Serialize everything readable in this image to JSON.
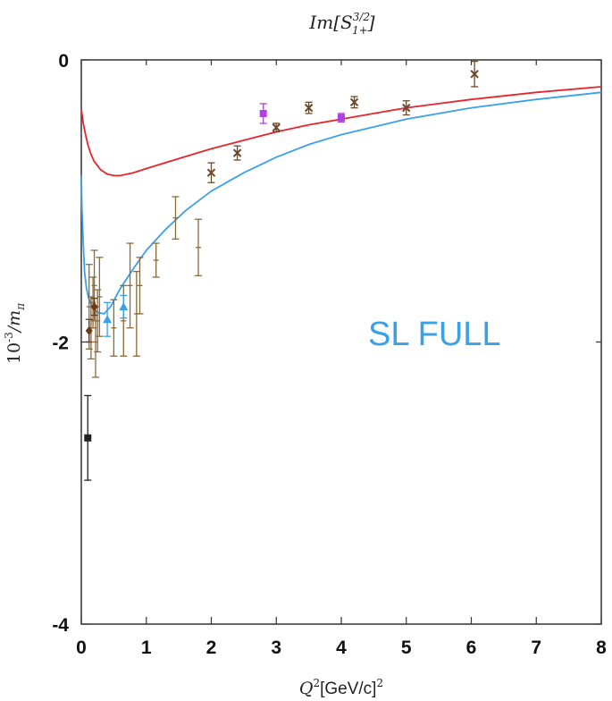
{
  "chart_data": {
    "type": "scatter",
    "title": "Im[S",
    "title_sup": "3/2",
    "title_sub": "1+",
    "title_end": "]",
    "xlabel": "Q",
    "xlabel_sup": "2",
    "xlabel_unit": "[GeV/c]",
    "xlabel_unit_sup": "2",
    "ylabel": "10",
    "ylabel_sup": "-3",
    "ylabel_end": "/m",
    "ylabel_sub": "π",
    "xlim": [
      0,
      8
    ],
    "ylim": [
      -4,
      0
    ],
    "xticks": [
      "0",
      "1",
      "2",
      "3",
      "4",
      "5",
      "6",
      "7",
      "8"
    ],
    "yticks": [
      "0",
      "-2",
      "-4"
    ],
    "grid": false,
    "annotation": "SL FULL",
    "curves": [
      {
        "color": "#e8242c",
        "points": [
          [
            0.0,
            -0.35
          ],
          [
            0.03,
            -0.45
          ],
          [
            0.06,
            -0.52
          ],
          [
            0.1,
            -0.6
          ],
          [
            0.15,
            -0.67
          ],
          [
            0.2,
            -0.72
          ],
          [
            0.3,
            -0.78
          ],
          [
            0.4,
            -0.81
          ],
          [
            0.5,
            -0.82
          ],
          [
            0.6,
            -0.82
          ],
          [
            0.8,
            -0.8
          ],
          [
            1.0,
            -0.77
          ],
          [
            1.5,
            -0.7
          ],
          [
            2.0,
            -0.63
          ],
          [
            2.5,
            -0.57
          ],
          [
            3.0,
            -0.51
          ],
          [
            3.5,
            -0.46
          ],
          [
            4.0,
            -0.42
          ],
          [
            4.5,
            -0.38
          ],
          [
            5.0,
            -0.34
          ],
          [
            5.5,
            -0.31
          ],
          [
            6.0,
            -0.28
          ],
          [
            7.0,
            -0.23
          ],
          [
            8.0,
            -0.19
          ]
        ]
      },
      {
        "color": "#3aa0e8",
        "points": [
          [
            0.0,
            -0.82
          ],
          [
            0.01,
            -1.05
          ],
          [
            0.03,
            -1.3
          ],
          [
            0.05,
            -1.5
          ],
          [
            0.08,
            -1.62
          ],
          [
            0.12,
            -1.7
          ],
          [
            0.18,
            -1.76
          ],
          [
            0.25,
            -1.79
          ],
          [
            0.35,
            -1.8
          ],
          [
            0.45,
            -1.75
          ],
          [
            0.6,
            -1.62
          ],
          [
            0.8,
            -1.48
          ],
          [
            1.0,
            -1.35
          ],
          [
            1.3,
            -1.2
          ],
          [
            1.6,
            -1.07
          ],
          [
            2.0,
            -0.93
          ],
          [
            2.5,
            -0.8
          ],
          [
            3.0,
            -0.69
          ],
          [
            3.5,
            -0.6
          ],
          [
            4.0,
            -0.53
          ],
          [
            5.0,
            -0.42
          ],
          [
            6.0,
            -0.34
          ],
          [
            7.0,
            -0.28
          ],
          [
            8.0,
            -0.23
          ]
        ]
      }
    ],
    "series": [
      {
        "marker": "bar",
        "color": "#8a6a3a",
        "points": [
          {
            "x": 0.12,
            "y": -1.75,
            "err": 0.3
          },
          {
            "x": 0.15,
            "y": -1.9,
            "err": 0.22
          },
          {
            "x": 0.18,
            "y": -1.72,
            "err": 0.18
          },
          {
            "x": 0.2,
            "y": -1.6,
            "err": 0.25
          },
          {
            "x": 0.22,
            "y": -2.0,
            "err": 0.25
          },
          {
            "x": 0.25,
            "y": -1.85,
            "err": 0.22
          },
          {
            "x": 0.28,
            "y": -1.68,
            "err": 0.28
          },
          {
            "x": 0.5,
            "y": -1.9,
            "err": 0.2
          },
          {
            "x": 0.65,
            "y": -1.85,
            "err": 0.25
          },
          {
            "x": 0.75,
            "y": -1.6,
            "err": 0.3
          },
          {
            "x": 0.85,
            "y": -1.8,
            "err": 0.3
          },
          {
            "x": 0.9,
            "y": -1.6,
            "err": 0.2
          },
          {
            "x": 1.15,
            "y": -1.42,
            "err": 0.12
          },
          {
            "x": 1.45,
            "y": -1.12,
            "err": 0.15
          },
          {
            "x": 1.8,
            "y": -1.33,
            "err": 0.2
          }
        ]
      },
      {
        "marker": "cross",
        "color": "#6a4a2a",
        "points": [
          {
            "x": 2.0,
            "y": -0.8,
            "err": 0.07
          },
          {
            "x": 2.4,
            "y": -0.66,
            "err": 0.05
          },
          {
            "x": 3.0,
            "y": -0.48,
            "err": 0.03
          },
          {
            "x": 3.5,
            "y": -0.34,
            "err": 0.04
          },
          {
            "x": 4.2,
            "y": -0.3,
            "err": 0.04
          },
          {
            "x": 5.0,
            "y": -0.34,
            "err": 0.05
          },
          {
            "x": 6.05,
            "y": -0.1,
            "err": 0.09
          }
        ]
      },
      {
        "marker": "square",
        "color": "#b040e0",
        "points": [
          {
            "x": 2.8,
            "y": -0.38,
            "err": 0.07
          },
          {
            "x": 4.0,
            "y": -0.41,
            "err": 0.03
          }
        ]
      },
      {
        "marker": "triangle",
        "color": "#3aa0e8",
        "points": [
          {
            "x": 0.4,
            "y": -1.84,
            "err": 0.12
          },
          {
            "x": 0.65,
            "y": -1.75,
            "err": 0.08
          }
        ]
      },
      {
        "marker": "diamond",
        "color": "#6a3a1a",
        "points": [
          {
            "x": 0.12,
            "y": -1.92,
            "err": 0.08
          },
          {
            "x": 0.2,
            "y": -1.75,
            "err": 0.06
          }
        ]
      },
      {
        "marker": "square",
        "color": "#222222",
        "points": [
          {
            "x": 0.1,
            "y": -2.68,
            "err": 0.3
          }
        ]
      }
    ]
  }
}
